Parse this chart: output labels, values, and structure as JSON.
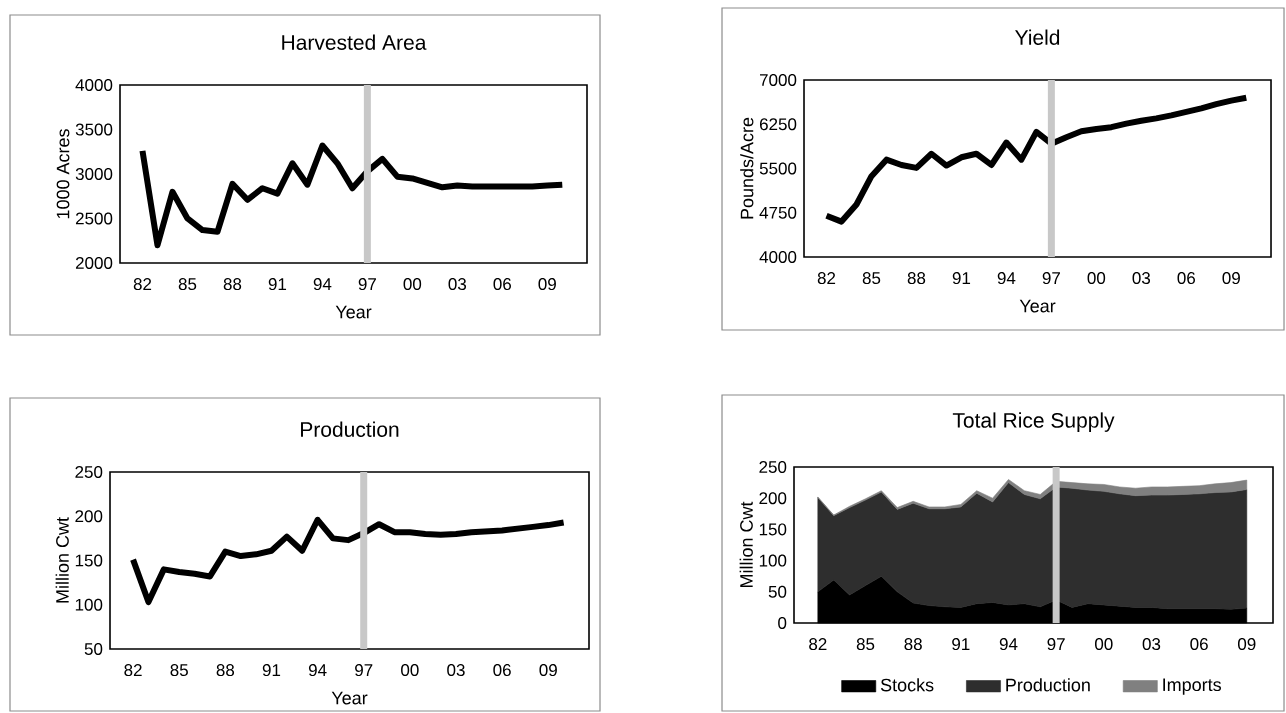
{
  "chart_data": [
    {
      "type": "line",
      "title": "Harvested Area",
      "xlabel": "Year",
      "ylabel": "1000 Acres",
      "categories": [
        "82",
        null,
        null,
        "85",
        null,
        null,
        "88",
        null,
        null,
        "91",
        null,
        null,
        "94",
        null,
        null,
        "97",
        null,
        null,
        "00",
        null,
        null,
        "03",
        null,
        null,
        "06",
        null,
        null,
        "09",
        null
      ],
      "values": [
        3260,
        2200,
        2800,
        2500,
        2370,
        2350,
        2890,
        2710,
        2840,
        2780,
        3120,
        2880,
        3320,
        3120,
        2840,
        3030,
        3170,
        2970,
        2950,
        2900,
        2850,
        2870,
        2860,
        2860,
        2860,
        2860,
        2860,
        2870,
        2880
      ],
      "color": "#000000",
      "ylim": [
        2000,
        4000
      ],
      "yticks": [
        2000,
        2500,
        3000,
        3500,
        4000
      ],
      "ref_lines": [
        {
          "axis": "x",
          "value": "97",
          "color": "#c8c8c8"
        }
      ]
    },
    {
      "type": "line",
      "title": "Yield",
      "xlabel": "Year",
      "ylabel": "Pounds/Acre",
      "categories": [
        "82",
        null,
        null,
        "85",
        null,
        null,
        "88",
        null,
        null,
        "91",
        null,
        null,
        "94",
        null,
        null,
        "97",
        null,
        null,
        "00",
        null,
        null,
        "03",
        null,
        null,
        "06",
        null,
        null,
        "09",
        null
      ],
      "values": [
        4700,
        4600,
        4890,
        5370,
        5650,
        5560,
        5510,
        5750,
        5550,
        5690,
        5750,
        5560,
        5940,
        5650,
        6120,
        5920,
        6030,
        6130,
        6170,
        6200,
        6260,
        6310,
        6350,
        6400,
        6460,
        6520,
        6590,
        6650,
        6700
      ],
      "color": "#000000",
      "ylim": [
        4000,
        7000
      ],
      "yticks": [
        4000,
        4750,
        5500,
        6250,
        7000
      ],
      "ref_lines": [
        {
          "axis": "x",
          "value": "97",
          "color": "#c8c8c8"
        }
      ]
    },
    {
      "type": "line",
      "title": "Production",
      "xlabel": "Year",
      "ylabel": "Million Cwt",
      "categories": [
        "82",
        null,
        null,
        "85",
        null,
        null,
        "88",
        null,
        null,
        "91",
        null,
        null,
        "94",
        null,
        null,
        "97",
        null,
        null,
        "00",
        null,
        null,
        "03",
        null,
        null,
        "06",
        null,
        null,
        "09",
        null
      ],
      "values": [
        151,
        103,
        140,
        137,
        135,
        132,
        160,
        155,
        157,
        161,
        177,
        161,
        196,
        175,
        173,
        181,
        191,
        182,
        182,
        180,
        179,
        180,
        182,
        183,
        184,
        186,
        188,
        190,
        193
      ],
      "color": "#000000",
      "ylim": [
        50,
        250
      ],
      "yticks": [
        50,
        100,
        150,
        200,
        250
      ],
      "ref_lines": [
        {
          "axis": "x",
          "value": "97",
          "color": "#c8c8c8"
        }
      ]
    },
    {
      "type": "area",
      "title": "Total Rice Supply",
      "ylabel": "Million Cwt",
      "stacked": true,
      "legend": "bottom",
      "categories": [
        "82",
        null,
        null,
        "85",
        null,
        null,
        "88",
        null,
        null,
        "91",
        null,
        null,
        "94",
        null,
        null,
        "97",
        null,
        null,
        "00",
        null,
        null,
        "03",
        null,
        null,
        "06",
        null,
        null,
        "09"
      ],
      "series": [
        {
          "name": "Stocks",
          "color": "#000000",
          "values": [
            50,
            69,
            45,
            60,
            75,
            50,
            32,
            28,
            26,
            25,
            31,
            33,
            29,
            31,
            26,
            37,
            25,
            31,
            29,
            27,
            25,
            25,
            23,
            23,
            23,
            23,
            22,
            24
          ]
        },
        {
          "name": "Production",
          "color": "#2e2e2e",
          "values": [
            151,
            103,
            140,
            137,
            135,
            132,
            160,
            155,
            157,
            161,
            177,
            161,
            196,
            175,
            173,
            181,
            191,
            182,
            182,
            180,
            179,
            180,
            182,
            183,
            184,
            186,
            188,
            190
          ]
        },
        {
          "name": "Imports",
          "color": "#808080",
          "values": [
            1,
            1,
            2,
            2,
            2,
            3,
            3,
            3,
            3,
            4,
            4,
            6,
            5,
            6,
            7,
            9,
            9,
            10,
            11,
            11,
            12,
            13,
            13,
            13,
            13,
            14,
            15,
            15
          ]
        }
      ],
      "ylim": [
        0,
        250
      ],
      "yticks": [
        0,
        50,
        100,
        150,
        200,
        250
      ],
      "ref_lines": [
        {
          "axis": "x",
          "value": "97",
          "color": "#c8c8c8"
        }
      ]
    }
  ]
}
